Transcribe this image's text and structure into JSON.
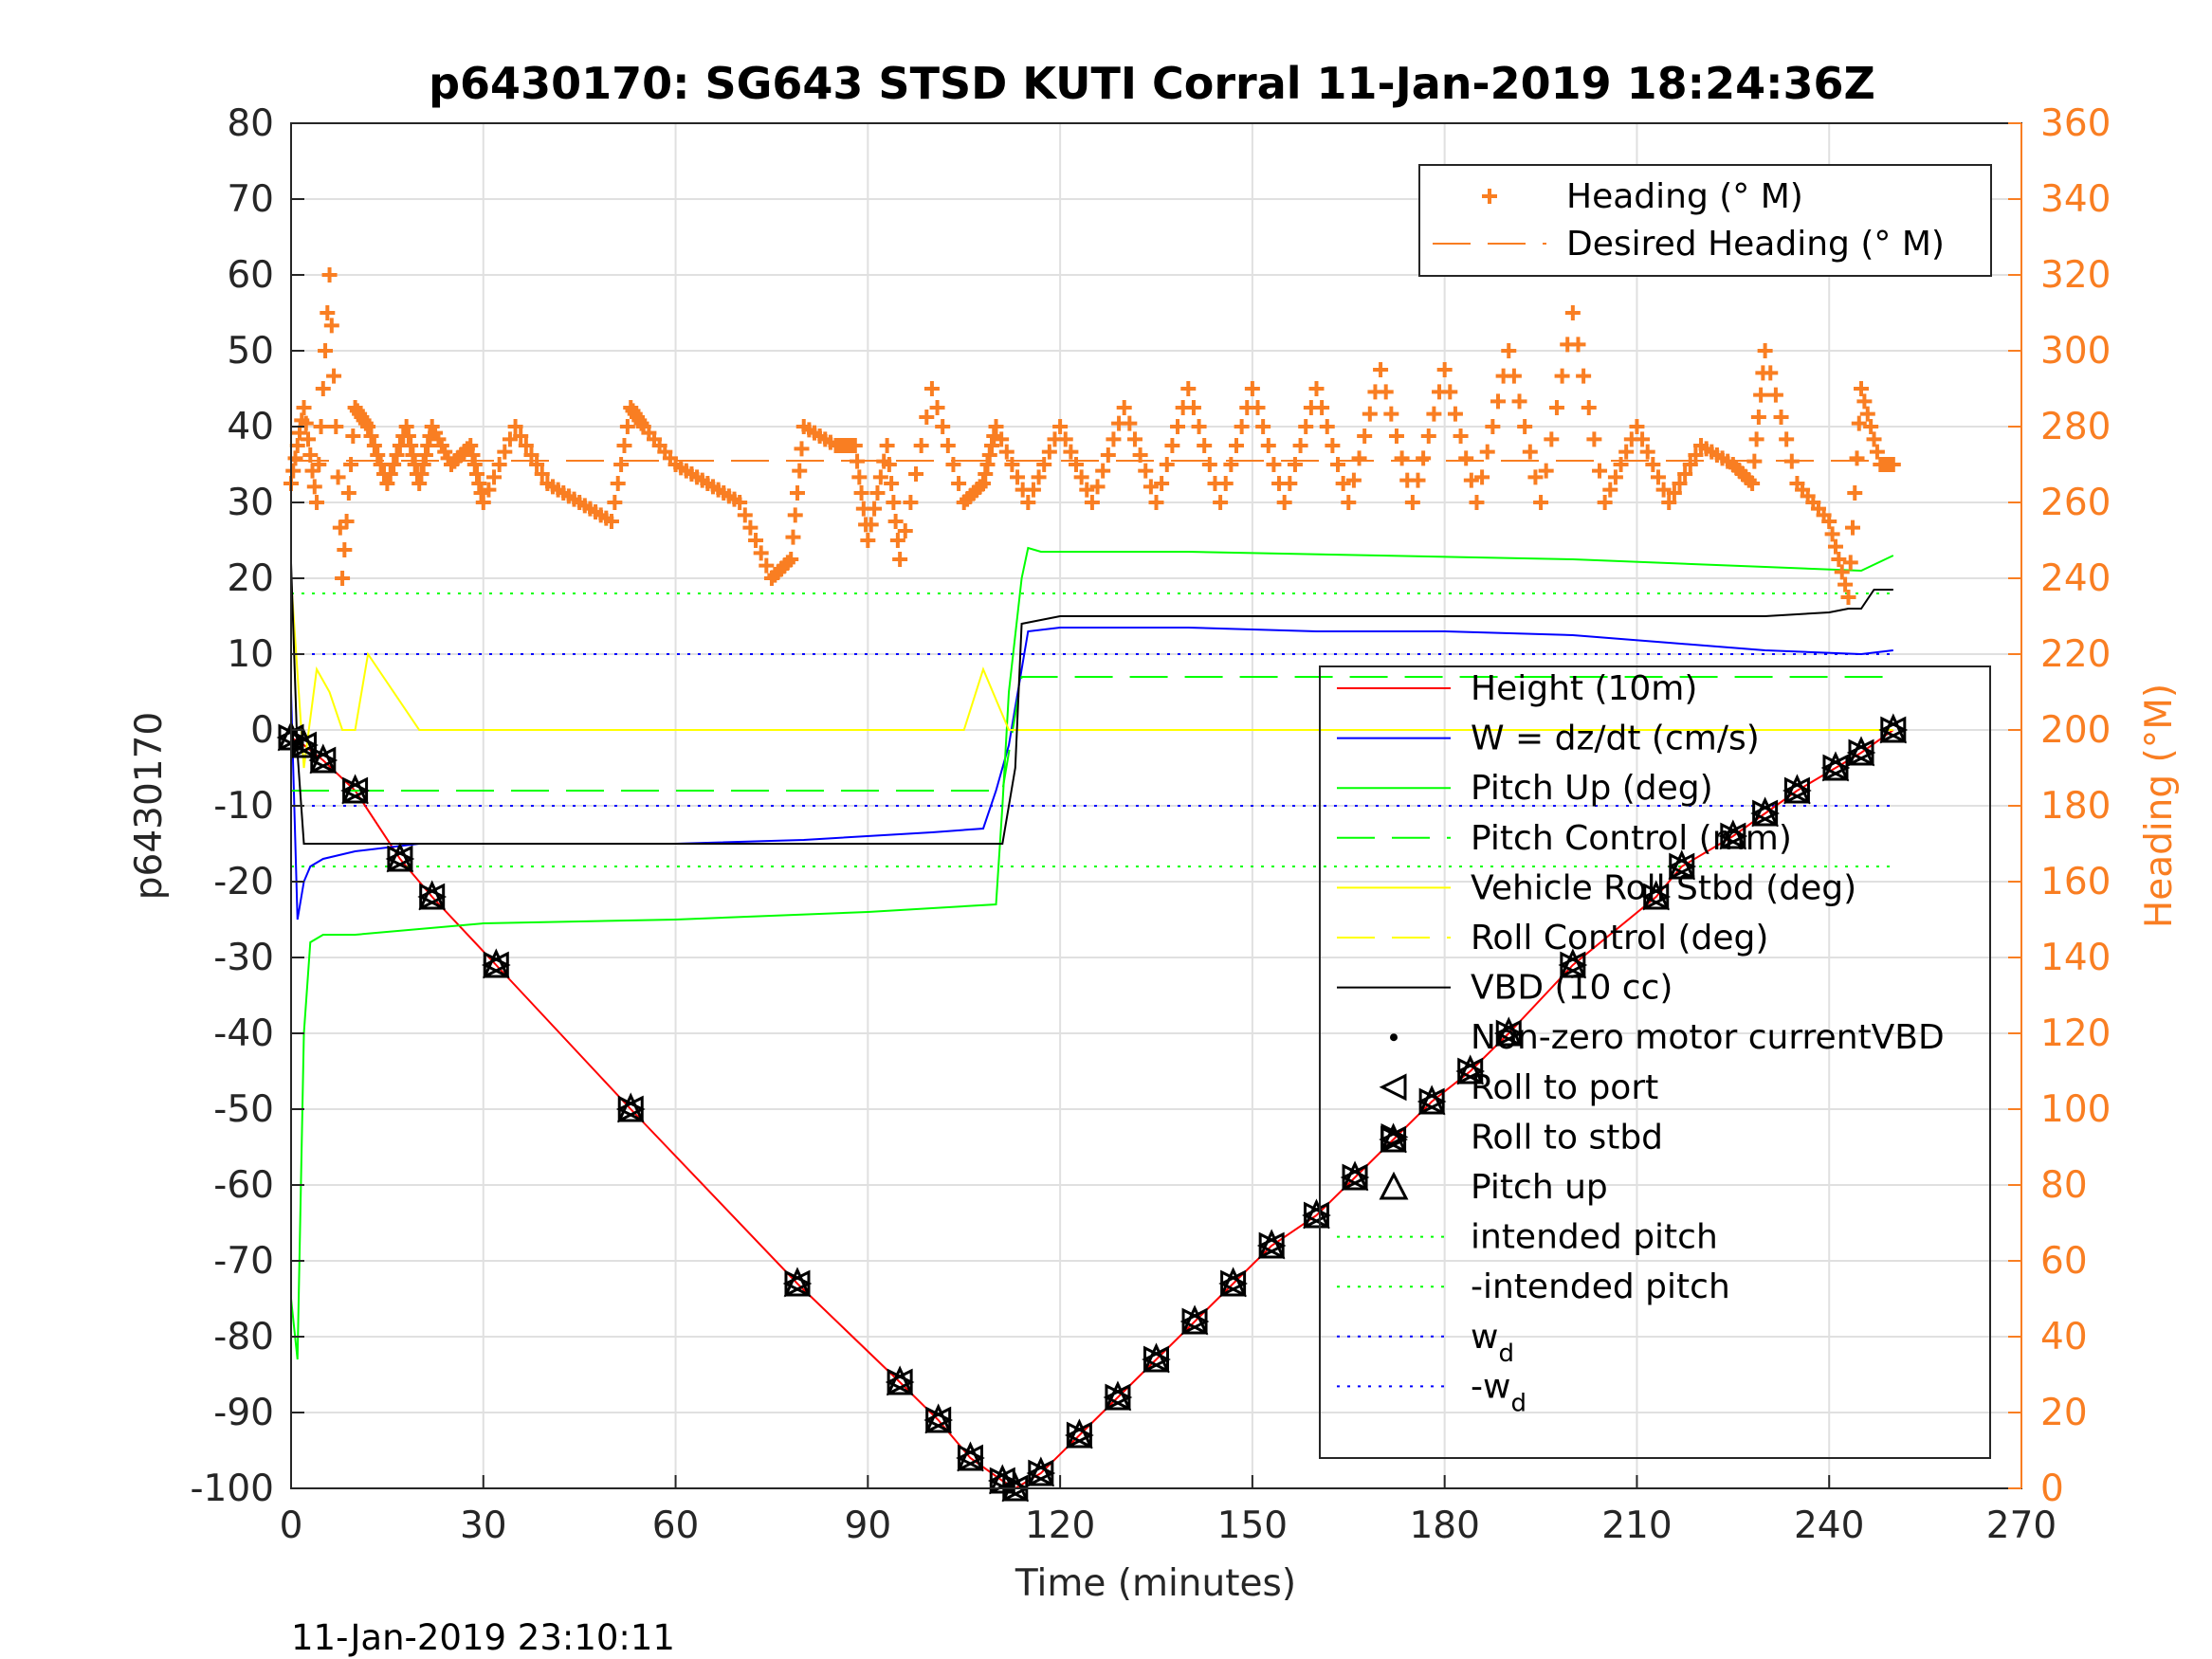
{
  "chart_data": {
    "type": "line",
    "title": "p6430170: SG643 STSD KUTI Corral 11-Jan-2019 18:24:36Z",
    "xlabel": "Time (minutes)",
    "ylabel": "p6430170",
    "y2label": "Heading (°M)",
    "footer_timestamp": "11-Jan-2019 23:10:11",
    "xlim": [
      0,
      270
    ],
    "ylim": [
      -100,
      80
    ],
    "y2lim": [
      0,
      360
    ],
    "grid": true,
    "xticks": [
      "0",
      "30",
      "60",
      "90",
      "120",
      "150",
      "180",
      "210",
      "240",
      "270"
    ],
    "yticks": [
      "-100",
      "-90",
      "-80",
      "-70",
      "-60",
      "-50",
      "-40",
      "-30",
      "-20",
      "-10",
      "0",
      "10",
      "20",
      "30",
      "40",
      "50",
      "60",
      "70",
      "80"
    ],
    "y2ticks": [
      "0",
      "20",
      "40",
      "60",
      "80",
      "100",
      "120",
      "140",
      "160",
      "180",
      "200",
      "220",
      "240",
      "260",
      "280",
      "300",
      "320",
      "340",
      "360"
    ],
    "colors": {
      "height": "#FF0000",
      "w": "#0000FF",
      "pitch": "#00FF00",
      "roll": "#FFFF00",
      "vbd": "#000000",
      "heading": "#F97E22",
      "grid": "#E0E0E0"
    },
    "legend_top": {
      "placement": "top-right",
      "entries": [
        "Heading (° M)",
        "Desired Heading (° M)"
      ]
    },
    "legend_main": {
      "placement": "right",
      "entries": [
        "Height (10m)",
        "W = dz/dt (cm/s)",
        "Pitch Up (deg)",
        "Pitch Control (mm)",
        "Vehicle Roll Stbd (deg)",
        "Roll Control (deg)",
        "VBD (10 cc)",
        "Non-zero motor currentVBD",
        "Roll to port",
        "Roll to stbd",
        "Pitch up",
        "intended pitch",
        "-intended pitch",
        "w",
        "-w"
      ],
      "subscript": "d"
    },
    "series": [
      {
        "name": "Height (10m)",
        "axis": "left",
        "x": [
          0,
          2,
          5,
          10,
          17,
          22,
          32,
          53,
          79,
          95,
          101,
          106,
          111,
          113,
          114,
          117,
          123,
          129,
          135,
          141,
          147,
          153,
          160,
          166,
          172,
          178,
          184,
          190,
          200,
          213,
          217,
          225,
          230,
          235,
          241,
          245,
          250
        ],
        "y": [
          -1,
          -2,
          -4,
          -8,
          -17,
          -22,
          -31,
          -50,
          -73,
          -86,
          -91,
          -96,
          -99,
          -100,
          -99.5,
          -98,
          -93,
          -88,
          -83,
          -78,
          -73,
          -68,
          -64,
          -59,
          -54,
          -49,
          -45,
          -40,
          -31,
          -22,
          -18,
          -14,
          -11,
          -8,
          -5,
          -3,
          0
        ]
      },
      {
        "name": "W = dz/dt (cm/s)",
        "axis": "left",
        "x": [
          0,
          1,
          2,
          3,
          5,
          10,
          20,
          40,
          60,
          80,
          100,
          108,
          110,
          112,
          114,
          115,
          120,
          140,
          160,
          180,
          200,
          215,
          230,
          245,
          250
        ],
        "y": [
          5,
          -25,
          -20,
          -18,
          -17,
          -16,
          -15,
          -15,
          -15,
          -14.5,
          -13.5,
          -13,
          -8,
          -2,
          8,
          13,
          13.5,
          13.5,
          13,
          13,
          12.5,
          11.5,
          10.5,
          10,
          10.5
        ]
      },
      {
        "name": "Pitch Up (deg)",
        "axis": "left",
        "x": [
          0,
          1,
          2,
          3,
          5,
          10,
          30,
          60,
          90,
          110,
          111,
          112,
          114,
          115,
          117,
          140,
          170,
          200,
          230,
          245,
          250
        ],
        "y": [
          -75,
          -83,
          -40,
          -28,
          -27,
          -27,
          -25.5,
          -25,
          -24,
          -23,
          -10,
          5,
          20,
          24,
          23.5,
          23.5,
          23,
          22.5,
          21.5,
          21,
          23
        ]
      },
      {
        "name": "Pitch Control (mm)",
        "axis": "left",
        "x": [
          0,
          111,
          114,
          250
        ],
        "y": [
          -8,
          -8,
          7,
          7
        ]
      },
      {
        "name": "Vehicle Roll Stbd (deg)",
        "axis": "left",
        "x": [
          0,
          2,
          4,
          6,
          8,
          10,
          12,
          20,
          30,
          60,
          90,
          105,
          108,
          112,
          114,
          120,
          150,
          180,
          210,
          240,
          250
        ],
        "y": [
          20,
          -5,
          8,
          5,
          0,
          0,
          10,
          0,
          0,
          0,
          0,
          0,
          8,
          0,
          0,
          0,
          0,
          0,
          0,
          0,
          0
        ]
      },
      {
        "name": "VBD (10 cc)",
        "axis": "left",
        "x": [
          0,
          1,
          2,
          110,
          111,
          113,
          114,
          120,
          200,
          230,
          240,
          243,
          245,
          247,
          250
        ],
        "y": [
          22,
          -3,
          -15,
          -15,
          -15,
          -5,
          14,
          15,
          15,
          15,
          15.5,
          16,
          16,
          18.5,
          18.5
        ]
      },
      {
        "name": "Heading (° M)",
        "axis": "right",
        "marker": "+",
        "x": [
          0,
          2,
          4,
          6,
          8,
          10,
          12,
          15,
          18,
          20,
          22,
          25,
          28,
          30,
          35,
          40,
          45,
          50,
          53,
          55,
          60,
          65,
          70,
          75,
          78,
          80,
          85,
          88,
          90,
          93,
          95,
          100,
          105,
          108,
          110,
          115,
          120,
          125,
          130,
          135,
          140,
          145,
          150,
          155,
          160,
          165,
          170,
          175,
          180,
          185,
          190,
          195,
          200,
          205,
          210,
          215,
          220,
          225,
          228,
          230,
          235,
          240,
          243,
          245,
          248,
          250
        ],
        "y": [
          265,
          285,
          260,
          320,
          240,
          285,
          280,
          265,
          280,
          265,
          280,
          270,
          275,
          260,
          280,
          265,
          260,
          255,
          285,
          280,
          270,
          265,
          260,
          240,
          245,
          280,
          275,
          275,
          250,
          275,
          245,
          290,
          260,
          265,
          280,
          260,
          280,
          260,
          285,
          260,
          290,
          260,
          290,
          260,
          290,
          260,
          295,
          260,
          295,
          260,
          300,
          260,
          310,
          260,
          280,
          260,
          275,
          270,
          265,
          300,
          265,
          255,
          235,
          290,
          270,
          270
        ]
      },
      {
        "name": "Desired Heading (° M)",
        "axis": "right",
        "x": [
          0,
          250
        ],
        "y": [
          271,
          271
        ]
      }
    ],
    "reference_lines": [
      {
        "name": "intended pitch",
        "y": 18,
        "color": "#00FF00"
      },
      {
        "name": "-intended pitch",
        "y": -18,
        "color": "#00FF00"
      },
      {
        "name": "w_d",
        "y": 10,
        "color": "#0000FF"
      },
      {
        "name": "-w_d",
        "y": -10,
        "color": "#0000FF"
      }
    ],
    "markers": {
      "pitch_up_roll_x": [
        0,
        2,
        5,
        10,
        17,
        22,
        32,
        53,
        79,
        95,
        101,
        106,
        111,
        113,
        117,
        123,
        129,
        135,
        141,
        147,
        153,
        160,
        166,
        172,
        178,
        184,
        190,
        200,
        213,
        217,
        225,
        230,
        235,
        241,
        245,
        250
      ],
      "pitch_up_roll_y": [
        -1,
        -2,
        -4,
        -8,
        -17,
        -22,
        -31,
        -50,
        -73,
        -86,
        -91,
        -96,
        -99,
        -100,
        -98,
        -93,
        -88,
        -83,
        -78,
        -73,
        -68,
        -64,
        -59,
        -54,
        -49,
        -45,
        -40,
        -31,
        -22,
        -18,
        -14,
        -11,
        -8,
        -5,
        -3,
        0
      ]
    }
  }
}
